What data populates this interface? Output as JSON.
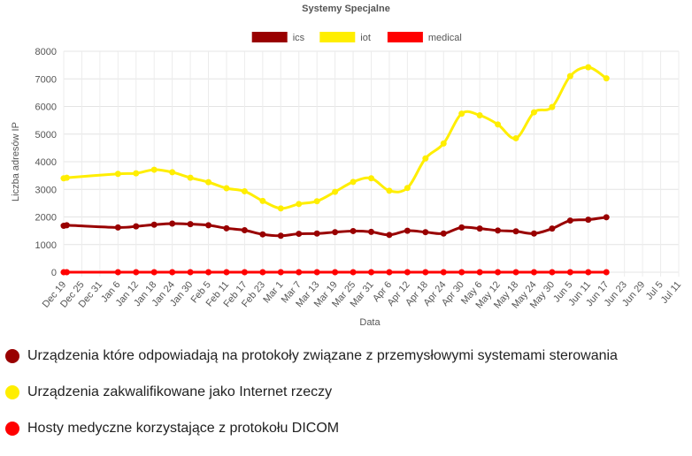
{
  "chart_data": {
    "type": "line",
    "title": "Systemy Specjalne",
    "xlabel": "Data",
    "ylabel": "Liczba adresów IP",
    "ylim": [
      0,
      8000
    ],
    "yticks": [
      0,
      1000,
      2000,
      3000,
      4000,
      5000,
      6000,
      7000,
      8000
    ],
    "grid": true,
    "legend_position": "top-center",
    "x_tick_labels": [
      "Dec 19",
      "Dec 25",
      "Dec 31",
      "Jan 6",
      "Jan 12",
      "Jan 18",
      "Jan 24",
      "Jan 30",
      "Feb 5",
      "Feb 11",
      "Feb 17",
      "Feb 23",
      "Mar 1",
      "Mar 7",
      "Mar 13",
      "Mar 19",
      "Mar 25",
      "Mar 31",
      "Apr 6",
      "Apr 12",
      "Apr 18",
      "Apr 24",
      "Apr 30",
      "May 6",
      "May 12",
      "May 18",
      "May 24",
      "May 30",
      "Jun 5",
      "Jun 11",
      "Jun 17",
      "Jun 23",
      "Jun 29",
      "Jul 5",
      "Jul 11"
    ],
    "series": [
      {
        "name": "ics",
        "color": "#990000",
        "points": [
          [
            "12-19",
            1680
          ],
          [
            "12-20",
            1700
          ],
          [
            "01-06",
            1620
          ],
          [
            "01-12",
            1660
          ],
          [
            "01-18",
            1720
          ],
          [
            "01-24",
            1760
          ],
          [
            "01-30",
            1740
          ],
          [
            "02-05",
            1700
          ],
          [
            "02-11",
            1590
          ],
          [
            "02-17",
            1520
          ],
          [
            "02-23",
            1370
          ],
          [
            "03-01",
            1320
          ],
          [
            "03-07",
            1390
          ],
          [
            "03-13",
            1400
          ],
          [
            "03-19",
            1450
          ],
          [
            "03-25",
            1490
          ],
          [
            "03-31",
            1460
          ],
          [
            "04-06",
            1350
          ],
          [
            "04-12",
            1500
          ],
          [
            "04-18",
            1450
          ],
          [
            "04-24",
            1400
          ],
          [
            "04-30",
            1620
          ],
          [
            "05-06",
            1580
          ],
          [
            "05-12",
            1510
          ],
          [
            "05-18",
            1480
          ],
          [
            "05-24",
            1400
          ],
          [
            "05-30",
            1580
          ],
          [
            "06-05",
            1870
          ],
          [
            "06-11",
            1900
          ],
          [
            "06-17",
            1990
          ]
        ]
      },
      {
        "name": "iot",
        "color": "#ffee00",
        "points": [
          [
            "12-19",
            3400
          ],
          [
            "12-20",
            3420
          ],
          [
            "01-06",
            3560
          ],
          [
            "01-12",
            3580
          ],
          [
            "01-18",
            3710
          ],
          [
            "01-24",
            3620
          ],
          [
            "01-30",
            3420
          ],
          [
            "02-05",
            3260
          ],
          [
            "02-11",
            3040
          ],
          [
            "02-17",
            2930
          ],
          [
            "02-23",
            2580
          ],
          [
            "03-01",
            2310
          ],
          [
            "03-07",
            2470
          ],
          [
            "03-13",
            2570
          ],
          [
            "03-19",
            2910
          ],
          [
            "03-25",
            3270
          ],
          [
            "03-31",
            3400
          ],
          [
            "04-06",
            2950
          ],
          [
            "04-12",
            3050
          ],
          [
            "04-18",
            4120
          ],
          [
            "04-24",
            4660
          ],
          [
            "04-30",
            5740
          ],
          [
            "05-06",
            5680
          ],
          [
            "05-12",
            5350
          ],
          [
            "05-18",
            4850
          ],
          [
            "05-24",
            5790
          ],
          [
            "05-30",
            5980
          ],
          [
            "06-05",
            7100
          ],
          [
            "06-11",
            7420
          ],
          [
            "06-17",
            7020
          ]
        ]
      },
      {
        "name": "medical",
        "color": "#ff0000",
        "points": [
          [
            "12-19",
            0
          ],
          [
            "12-20",
            0
          ],
          [
            "01-06",
            0
          ],
          [
            "01-12",
            0
          ],
          [
            "01-18",
            0
          ],
          [
            "01-24",
            0
          ],
          [
            "01-30",
            0
          ],
          [
            "02-05",
            0
          ],
          [
            "02-11",
            0
          ],
          [
            "02-17",
            0
          ],
          [
            "02-23",
            0
          ],
          [
            "03-01",
            0
          ],
          [
            "03-07",
            0
          ],
          [
            "03-13",
            0
          ],
          [
            "03-19",
            0
          ],
          [
            "03-25",
            0
          ],
          [
            "03-31",
            0
          ],
          [
            "04-06",
            0
          ],
          [
            "04-12",
            0
          ],
          [
            "04-18",
            0
          ],
          [
            "04-24",
            0
          ],
          [
            "04-30",
            0
          ],
          [
            "05-06",
            0
          ],
          [
            "05-12",
            0
          ],
          [
            "05-18",
            0
          ],
          [
            "05-24",
            0
          ],
          [
            "05-30",
            0
          ],
          [
            "06-05",
            0
          ],
          [
            "06-11",
            0
          ],
          [
            "06-17",
            0
          ]
        ]
      }
    ]
  },
  "descriptions": [
    {
      "label": "Urządzenia które odpowiadają na protokoły związane z przemysłowymi systemami sterowania",
      "color": "#990000"
    },
    {
      "label": "Urządzenia zakwalifikowane jako Internet rzeczy",
      "color": "#ffee00"
    },
    {
      "label": "Hosty medyczne korzystające z protokołu DICOM",
      "color": "#ff0000"
    }
  ]
}
